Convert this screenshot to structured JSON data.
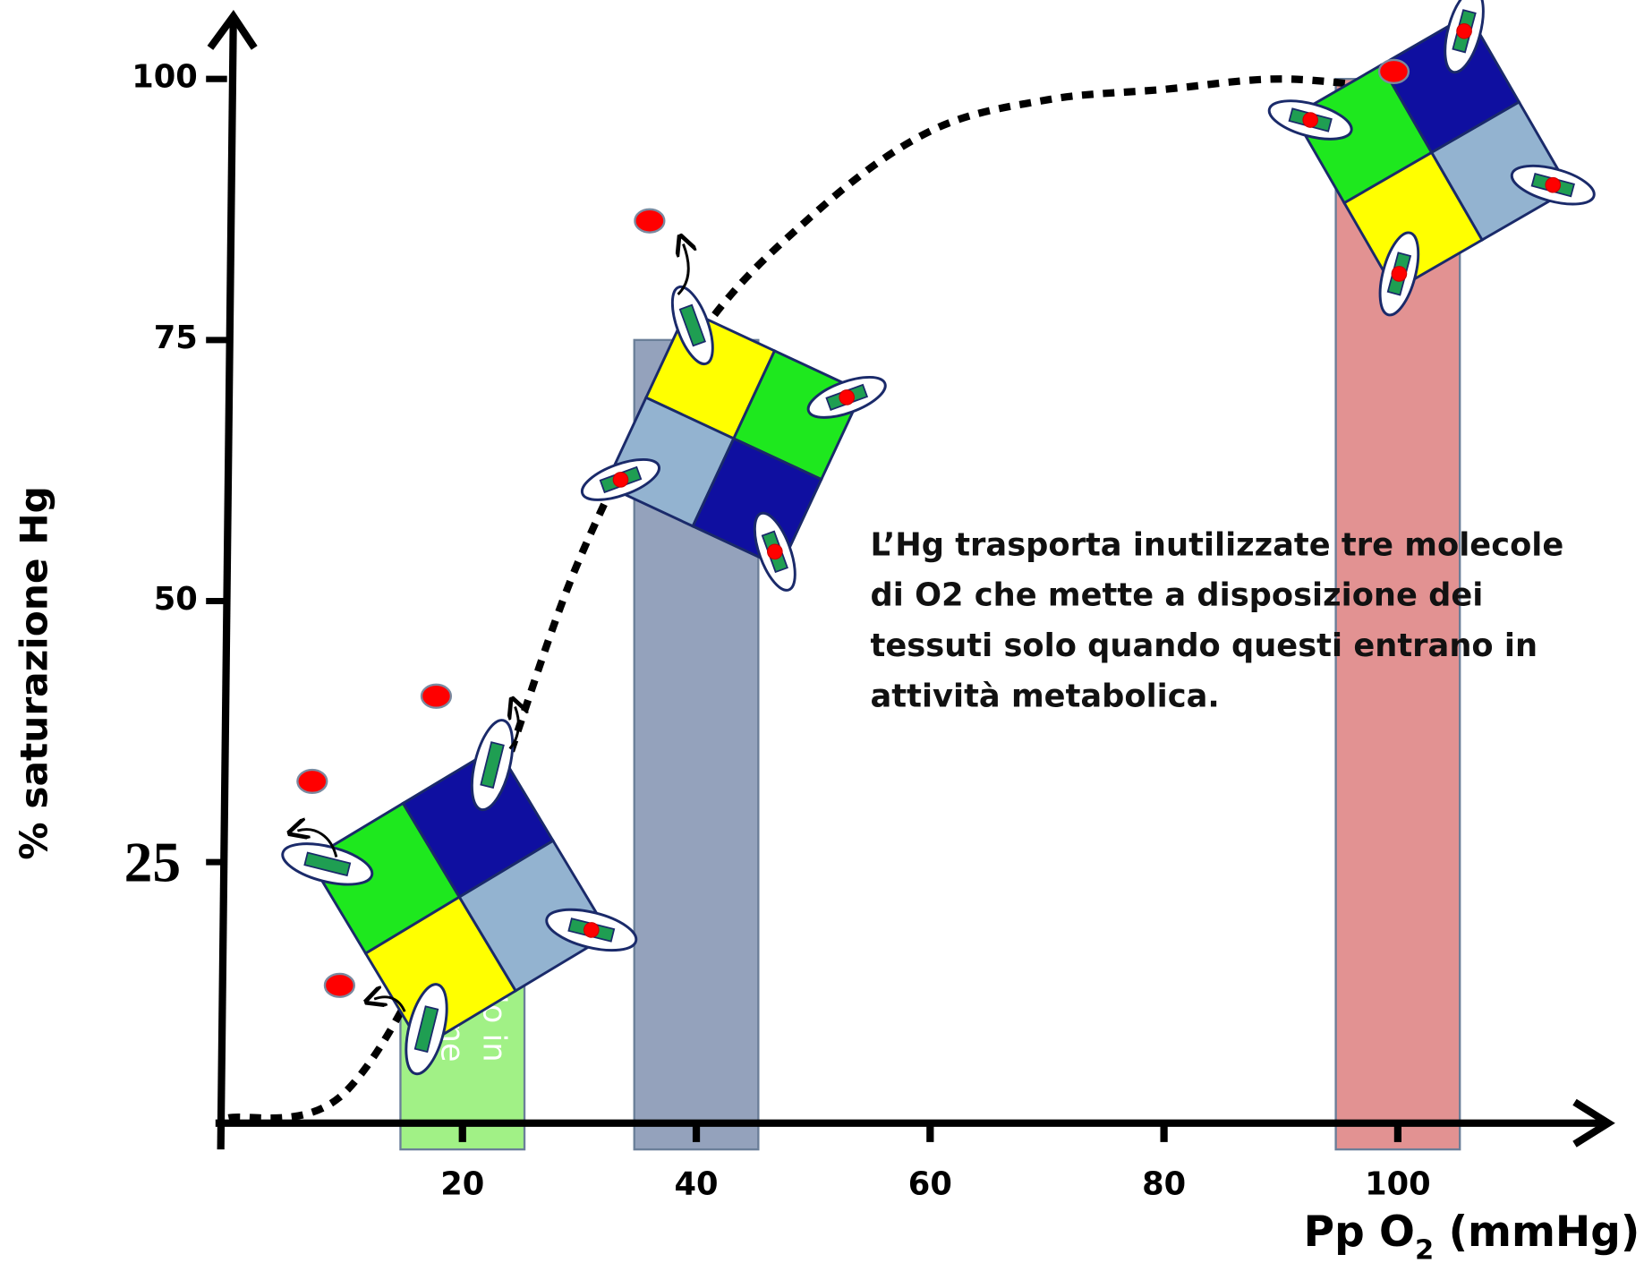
{
  "chart_data": {
    "type": "line",
    "y_label": "% saturazione Hg",
    "x_label": [
      "Pp O",
      "2",
      " (mmHg)"
    ],
    "x": [
      0,
      10,
      20,
      30,
      40,
      50,
      60,
      70,
      80,
      90,
      100
    ],
    "values": [
      0.5,
      3,
      23,
      54,
      75,
      87,
      95,
      98,
      99,
      100,
      99
    ],
    "color": "#000000",
    "line_style": "dotted",
    "xlim": [
      0,
      118
    ],
    "ylim": [
      0,
      106
    ],
    "xticks": [
      20,
      40,
      60,
      80,
      100
    ],
    "yticks": [
      25,
      50,
      75,
      100
    ],
    "highlight_ytick": 25,
    "bars": {
      "x": [
        20,
        40,
        100
      ],
      "values": [
        25,
        75,
        100
      ],
      "colors": [
        "#9cf080",
        "#8e9db8",
        "#e08c8c"
      ]
    },
    "bar_note": [
      "olo in",
      "ione"
    ],
    "annotation": [
      "L’Hg trasporta inutilizzate tre molecole",
      "di O2 che mette a disposizione dei",
      "tessuti solo quando questi entrano in",
      "attività metabolica."
    ]
  }
}
